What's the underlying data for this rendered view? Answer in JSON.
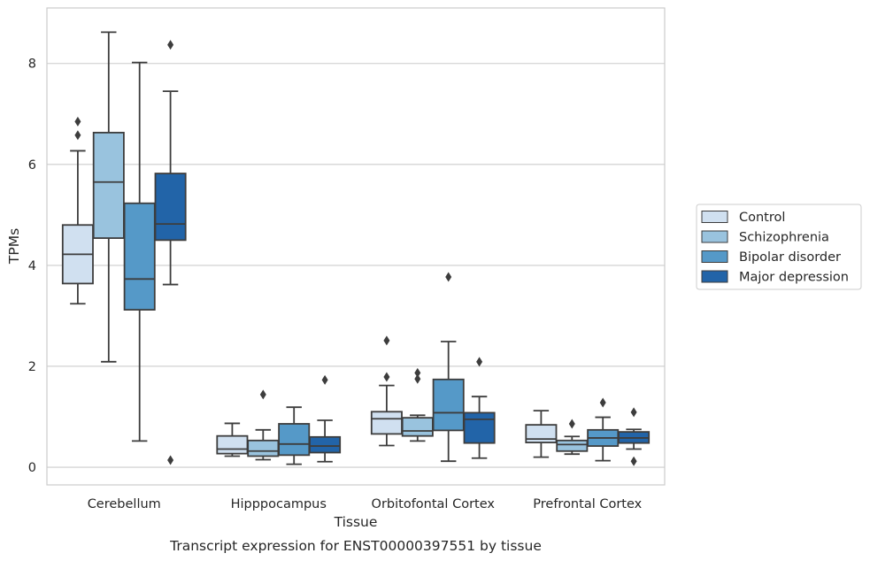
{
  "chart_data": {
    "type": "box",
    "caption": "Transcript expression for ENST00000397551 by tissue",
    "xlabel": "Tissue",
    "ylabel": "TPMs",
    "ylim": [
      -0.35,
      9.1
    ],
    "yticks": [
      0,
      2,
      4,
      6,
      8
    ],
    "grid": "horizontal",
    "legend_position": "right",
    "categories": [
      "Cerebellum",
      "Hipppocampus",
      "Orbitofontal Cortex",
      "Prefrontal Cortex"
    ],
    "series": [
      {
        "name": "Control",
        "color": "#d0e0f0",
        "boxes": [
          {
            "whisker_low": 3.24,
            "q1": 3.64,
            "median": 4.22,
            "q3": 4.8,
            "whisker_high": 6.27,
            "outliers": [
              6.58,
              6.85
            ]
          },
          {
            "whisker_low": 0.22,
            "q1": 0.27,
            "median": 0.36,
            "q3": 0.62,
            "whisker_high": 0.87,
            "outliers": []
          },
          {
            "whisker_low": 0.43,
            "q1": 0.66,
            "median": 0.96,
            "q3": 1.1,
            "whisker_high": 1.62,
            "outliers": [
              1.79,
              2.51
            ]
          },
          {
            "whisker_low": 0.2,
            "q1": 0.49,
            "median": 0.56,
            "q3": 0.84,
            "whisker_high": 1.12,
            "outliers": []
          }
        ]
      },
      {
        "name": "Schizophrenia",
        "color": "#99c3de",
        "boxes": [
          {
            "whisker_low": 2.09,
            "q1": 4.54,
            "median": 5.65,
            "q3": 6.63,
            "whisker_high": 8.62,
            "outliers": []
          },
          {
            "whisker_low": 0.15,
            "q1": 0.22,
            "median": 0.32,
            "q3": 0.53,
            "whisker_high": 0.74,
            "outliers": [
              1.44
            ]
          },
          {
            "whisker_low": 0.52,
            "q1": 0.62,
            "median": 0.72,
            "q3": 0.98,
            "whisker_high": 1.03,
            "outliers": [
              1.75,
              1.87
            ]
          },
          {
            "whisker_low": 0.26,
            "q1": 0.32,
            "median": 0.45,
            "q3": 0.53,
            "whisker_high": 0.61,
            "outliers": [
              0.86
            ]
          }
        ]
      },
      {
        "name": "Bipolar disorder",
        "color": "#5599c8",
        "boxes": [
          {
            "whisker_low": 0.52,
            "q1": 3.12,
            "median": 3.73,
            "q3": 5.23,
            "whisker_high": 8.02,
            "outliers": []
          },
          {
            "whisker_low": 0.06,
            "q1": 0.24,
            "median": 0.46,
            "q3": 0.86,
            "whisker_high": 1.19,
            "outliers": []
          },
          {
            "whisker_low": 0.12,
            "q1": 0.73,
            "median": 1.08,
            "q3": 1.74,
            "whisker_high": 2.49,
            "outliers": [
              3.77
            ]
          },
          {
            "whisker_low": 0.13,
            "q1": 0.42,
            "median": 0.58,
            "q3": 0.74,
            "whisker_high": 0.99,
            "outliers": [
              1.28
            ]
          }
        ]
      },
      {
        "name": "Major depression",
        "color": "#2264a8",
        "boxes": [
          {
            "whisker_low": 3.62,
            "q1": 4.5,
            "median": 4.82,
            "q3": 5.82,
            "whisker_high": 7.45,
            "outliers": [
              0.14,
              8.37
            ]
          },
          {
            "whisker_low": 0.11,
            "q1": 0.29,
            "median": 0.42,
            "q3": 0.6,
            "whisker_high": 0.93,
            "outliers": [
              1.73
            ]
          },
          {
            "whisker_low": 0.18,
            "q1": 0.48,
            "median": 0.95,
            "q3": 1.08,
            "whisker_high": 1.4,
            "outliers": [
              2.09
            ]
          },
          {
            "whisker_low": 0.36,
            "q1": 0.48,
            "median": 0.58,
            "q3": 0.7,
            "whisker_high": 0.75,
            "outliers": [
              0.12,
              1.09
            ]
          }
        ]
      }
    ]
  }
}
